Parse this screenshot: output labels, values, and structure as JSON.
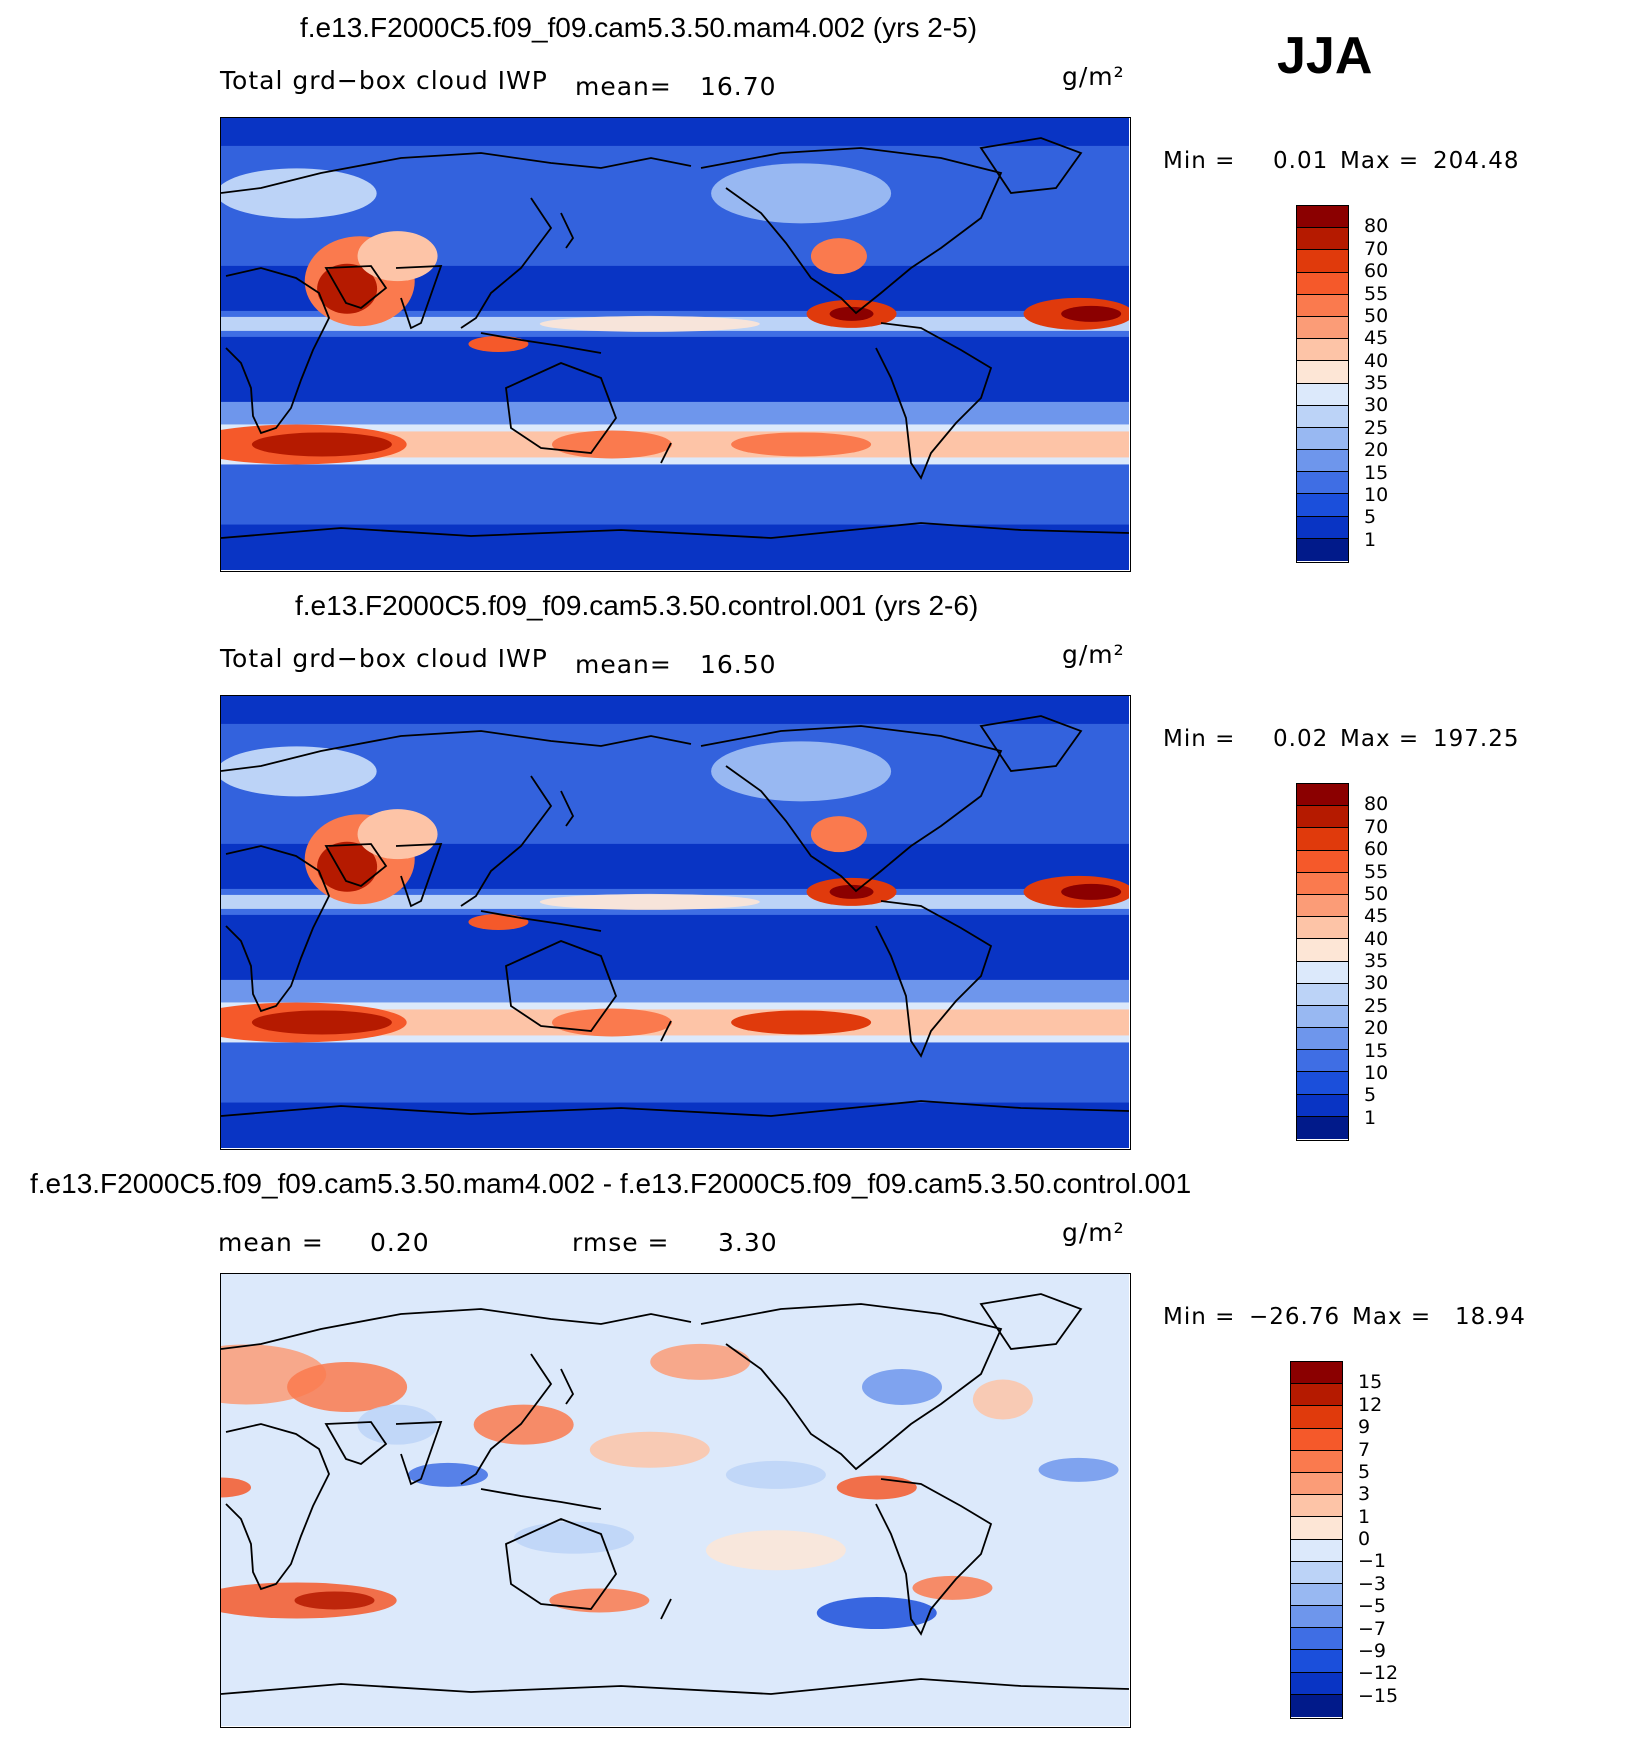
{
  "season": "JJA",
  "panels": [
    {
      "id": "mam4",
      "title": "f.e13.F2000C5.f09_f09.cam5.3.50.mam4.002 (yrs 2-5)",
      "variable": "Total grd−box cloud IWP",
      "mean_label": "mean=",
      "mean_value": "16.70",
      "units": "g/m²",
      "min_label": "Min =",
      "min_value": "0.01",
      "max_label": "Max =",
      "max_value": "204.48"
    },
    {
      "id": "control",
      "title": "f.e13.F2000C5.f09_f09.cam5.3.50.control.001 (yrs 2-6)",
      "variable": "Total grd−box cloud IWP",
      "mean_label": "mean=",
      "mean_value": "16.50",
      "units": "g/m²",
      "min_label": "Min =",
      "min_value": "0.02",
      "max_label": "Max =",
      "max_value": "197.25"
    },
    {
      "id": "diff",
      "title": "f.e13.F2000C5.f09_f09.cam5.3.50.mam4.002 - f.e13.F2000C5.f09_f09.cam5.3.50.control.001",
      "mean_label": "mean =",
      "mean_value": "0.20",
      "rmse_label": "rmse =",
      "rmse_value": "3.30",
      "units": "g/m²",
      "min_label": "Min =",
      "min_value": "−26.76",
      "max_label": "Max =",
      "max_value": "18.94"
    }
  ],
  "chart_data": [
    {
      "type": "heatmap",
      "title": "f.e13.F2000C5.f09_f09.cam5.3.50.mam4.002 (yrs 2-5)",
      "colorbar_levels": [
        "80",
        "70",
        "60",
        "55",
        "50",
        "45",
        "40",
        "35",
        "30",
        "25",
        "20",
        "15",
        "10",
        "5",
        "1"
      ],
      "colorbar_colors": [
        "#8b0000",
        "#b51a00",
        "#e03a0c",
        "#f5592a",
        "#fa7a4e",
        "#fb9c77",
        "#fdc4a7",
        "#fde6d6",
        "#dce9fb",
        "#bcd3f7",
        "#98b8f2",
        "#6e96ec",
        "#3f6ee4",
        "#1b4fdb",
        "#0934c4",
        "#011a8a"
      ],
      "min": 0.01,
      "max": 204.48,
      "mean": 16.7
    },
    {
      "type": "heatmap",
      "title": "f.e13.F2000C5.f09_f09.cam5.3.50.control.001 (yrs 2-6)",
      "colorbar_levels": [
        "80",
        "70",
        "60",
        "55",
        "50",
        "45",
        "40",
        "35",
        "30",
        "25",
        "20",
        "15",
        "10",
        "5",
        "1"
      ],
      "colorbar_colors": [
        "#8b0000",
        "#b51a00",
        "#e03a0c",
        "#f5592a",
        "#fa7a4e",
        "#fb9c77",
        "#fdc4a7",
        "#fde6d6",
        "#dce9fb",
        "#bcd3f7",
        "#98b8f2",
        "#6e96ec",
        "#3f6ee4",
        "#1b4fdb",
        "#0934c4",
        "#011a8a"
      ],
      "min": 0.02,
      "max": 197.25,
      "mean": 16.5
    },
    {
      "type": "heatmap",
      "title": "f.e13.F2000C5.f09_f09.cam5.3.50.mam4.002 - f.e13.F2000C5.f09_f09.cam5.3.50.control.001",
      "colorbar_levels": [
        "15",
        "12",
        "9",
        "7",
        "5",
        "3",
        "1",
        "0",
        "−1",
        "−3",
        "−5",
        "−7",
        "−9",
        "−12",
        "−15"
      ],
      "colorbar_colors": [
        "#8b0000",
        "#b51a00",
        "#e03a0c",
        "#f5592a",
        "#fa7a4e",
        "#fb9c77",
        "#fdc4a7",
        "#fde6d6",
        "#dce9fb",
        "#bcd3f7",
        "#98b8f2",
        "#6e96ec",
        "#3f6ee4",
        "#1b4fdb",
        "#0934c4",
        "#011a8a"
      ],
      "min": -26.76,
      "max": 18.94,
      "mean": 0.2,
      "rmse": 3.3
    }
  ]
}
